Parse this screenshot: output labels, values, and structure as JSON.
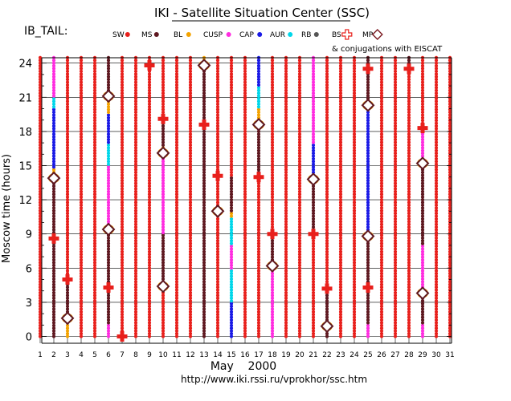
{
  "header": {
    "title": "IKI - Satellite Situation Center (SSC)",
    "dataset": "IB_TAIL:",
    "conjugation_note": "& conjugations with EISCAT"
  },
  "legend": [
    {
      "label": "SW",
      "color": "#e8201c",
      "marker": "dot"
    },
    {
      "label": "MS",
      "color": "#5e1820",
      "marker": "dot"
    },
    {
      "label": "BL",
      "color": "#f4a300",
      "marker": "dot"
    },
    {
      "label": "CUSP",
      "color": "#ff2de0",
      "marker": "dot"
    },
    {
      "label": "CAP",
      "color": "#1a1ae6",
      "marker": "dot"
    },
    {
      "label": "AUR",
      "color": "#00d7ea",
      "marker": "dot"
    },
    {
      "label": "RB",
      "color": "#555555",
      "marker": "dot"
    },
    {
      "label": "BS",
      "color": "#e8201c",
      "marker": "cross"
    },
    {
      "label": "MP",
      "color": "#7a1a20",
      "marker": "diamond"
    }
  ],
  "footer": {
    "url": "http://www.iki.rssi.ru/vprokhor/ssc.htm"
  },
  "chart_data": {
    "type": "scatter",
    "title": "IKI - Satellite Situation Center (SSC)",
    "xlabel": "May    2000",
    "ylabel": "Moscow time (hours)",
    "xlim": [
      1,
      31
    ],
    "ylim": [
      0,
      24
    ],
    "x_ticks": [
      1,
      2,
      3,
      4,
      5,
      6,
      7,
      8,
      9,
      10,
      11,
      12,
      13,
      14,
      15,
      16,
      17,
      18,
      19,
      20,
      21,
      22,
      23,
      24,
      25,
      26,
      27,
      28,
      29,
      30,
      31
    ],
    "y_ticks": [
      0,
      3,
      6,
      9,
      12,
      15,
      18,
      21,
      24
    ],
    "grid": true,
    "default_region": "SW",
    "series": [
      {
        "day": 2,
        "segments": [
          [
            0,
            13.9,
            "MS"
          ],
          [
            13.9,
            14.8,
            "BL"
          ],
          [
            14.8,
            20,
            "CAP"
          ],
          [
            20,
            21,
            "AUR"
          ],
          [
            21,
            24.6,
            "CUSP"
          ]
        ]
      },
      {
        "day": 3,
        "segments": [
          [
            0,
            1.2,
            "BL"
          ],
          [
            1.2,
            4.8,
            "MS"
          ]
        ]
      },
      {
        "day": 6,
        "segments": [
          [
            0,
            1,
            "CUSP"
          ],
          [
            1,
            9.4,
            "MS"
          ],
          [
            9.4,
            15,
            "CUSP"
          ],
          [
            15,
            17,
            "AUR"
          ],
          [
            17,
            19.5,
            "CAP"
          ],
          [
            19.5,
            21.1,
            "BL"
          ],
          [
            21.1,
            24.6,
            "MS"
          ]
        ]
      },
      {
        "day": 10,
        "segments": [
          [
            4.4,
            9,
            "MS"
          ],
          [
            9,
            16,
            "CUSP"
          ],
          [
            16,
            16.8,
            "BL"
          ],
          [
            16.8,
            19,
            "MS"
          ]
        ]
      },
      {
        "day": 13,
        "segments": [
          [
            0,
            23.7,
            "MS"
          ],
          [
            23.7,
            24.6,
            "BL"
          ]
        ]
      },
      {
        "day": 15,
        "segments": [
          [
            0,
            3,
            "CAP"
          ],
          [
            3,
            6,
            "AUR"
          ],
          [
            6,
            8,
            "CUSP"
          ],
          [
            8,
            10.5,
            "AUR"
          ],
          [
            10.5,
            11,
            "BL"
          ],
          [
            11,
            14,
            "MS"
          ]
        ]
      },
      {
        "day": 17,
        "segments": [
          [
            14,
            18.6,
            "MS"
          ],
          [
            18.6,
            20,
            "BL"
          ],
          [
            20,
            22,
            "AUR"
          ],
          [
            22,
            24.6,
            "CAP"
          ]
        ]
      },
      {
        "day": 18,
        "segments": [
          [
            0,
            6.2,
            "CUSP"
          ],
          [
            6.2,
            9,
            "MS"
          ]
        ]
      },
      {
        "day": 21,
        "segments": [
          [
            9,
            13.8,
            "MS"
          ],
          [
            13.8,
            17,
            "CAP"
          ],
          [
            17,
            24.6,
            "CUSP"
          ]
        ]
      },
      {
        "day": 22,
        "segments": [
          [
            0,
            4.3,
            "MS"
          ]
        ]
      },
      {
        "day": 25,
        "segments": [
          [
            0,
            1,
            "CUSP"
          ],
          [
            1,
            8.8,
            "MS"
          ],
          [
            8.8,
            20.3,
            "CAP"
          ],
          [
            20.3,
            24.6,
            "MS"
          ]
        ]
      },
      {
        "day": 28,
        "segments": [
          [
            23.6,
            24.6,
            "MS"
          ]
        ]
      },
      {
        "day": 29,
        "segments": [
          [
            0,
            1,
            "CUSP"
          ],
          [
            1,
            3.8,
            "MS"
          ],
          [
            3.8,
            8,
            "CUSP"
          ],
          [
            8,
            15.2,
            "MS"
          ],
          [
            15.2,
            18.5,
            "CUSP"
          ]
        ]
      }
    ],
    "bow_shock_crossings": [
      {
        "day": 2,
        "hour": 8.6
      },
      {
        "day": 3,
        "hour": 5.0
      },
      {
        "day": 6,
        "hour": 4.3
      },
      {
        "day": 7,
        "hour": 0
      },
      {
        "day": 9,
        "hour": 23.8
      },
      {
        "day": 10,
        "hour": 19.1
      },
      {
        "day": 13,
        "hour": 18.6
      },
      {
        "day": 14,
        "hour": 14.1
      },
      {
        "day": 17,
        "hour": 14.0
      },
      {
        "day": 18,
        "hour": 9.0
      },
      {
        "day": 21,
        "hour": 9.0
      },
      {
        "day": 22,
        "hour": 4.2
      },
      {
        "day": 25,
        "hour": 23.5
      },
      {
        "day": 25,
        "hour": 4.3
      },
      {
        "day": 28,
        "hour": 23.5
      },
      {
        "day": 29,
        "hour": 18.3
      }
    ],
    "magnetopause_crossings": [
      {
        "day": 2,
        "hour": 13.9
      },
      {
        "day": 3,
        "hour": 1.6
      },
      {
        "day": 6,
        "hour": 21.1
      },
      {
        "day": 6,
        "hour": 9.4
      },
      {
        "day": 10,
        "hour": 16.1
      },
      {
        "day": 10,
        "hour": 4.4
      },
      {
        "day": 13,
        "hour": 23.8
      },
      {
        "day": 14,
        "hour": 11.0
      },
      {
        "day": 17,
        "hour": 18.6
      },
      {
        "day": 18,
        "hour": 6.2
      },
      {
        "day": 21,
        "hour": 13.8
      },
      {
        "day": 22,
        "hour": 0.9
      },
      {
        "day": 25,
        "hour": 20.3
      },
      {
        "day": 25,
        "hour": 8.8
      },
      {
        "day": 29,
        "hour": 15.2
      },
      {
        "day": 29,
        "hour": 3.8
      }
    ]
  }
}
